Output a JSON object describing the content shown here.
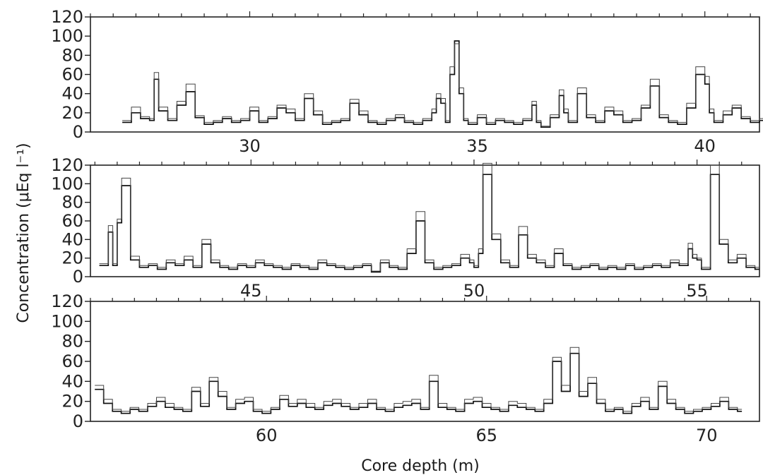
{
  "ylabel": "Concentration  (μEq  l⁻¹)",
  "xlabel": "Core depth (m)",
  "chart_data": [
    {
      "type": "line",
      "xlim": [
        26.5,
        41.2
      ],
      "ylim": [
        0,
        120
      ],
      "xticks": [
        30,
        35,
        40
      ],
      "xtick_labels": [
        "30",
        "35",
        "40"
      ],
      "yticks": [
        0,
        20,
        40,
        60,
        80,
        100,
        120
      ],
      "ytick_labels": [
        "0",
        "20",
        "40",
        "60",
        "80",
        "100",
        "120"
      ],
      "series": [
        {
          "x": [
            27.2,
            27.4,
            27.6,
            27.8,
            27.9,
            28.0,
            28.2,
            28.4,
            28.6,
            28.8,
            29.0,
            29.2,
            29.4,
            29.6,
            29.8,
            30.0,
            30.2,
            30.4,
            30.6,
            30.8,
            31.0,
            31.2,
            31.4,
            31.6,
            31.8,
            32.0,
            32.2,
            32.4,
            32.6,
            32.8,
            33.0,
            33.2,
            33.4,
            33.6,
            33.8,
            34.0,
            34.1,
            34.2,
            34.3,
            34.4,
            34.5,
            34.6,
            34.7,
            34.8,
            35.0,
            35.2,
            35.4,
            35.6,
            35.8,
            36.0,
            36.2,
            36.3,
            36.4,
            36.6,
            36.8,
            36.9,
            37.0,
            37.2,
            37.4,
            37.6,
            37.8,
            38.0,
            38.2,
            38.4,
            38.6,
            38.8,
            39.0,
            39.2,
            39.4,
            39.6,
            39.8,
            40.0,
            40.1,
            40.2,
            40.4,
            40.6,
            40.8,
            41.0,
            41.2
          ],
          "y": [
            10,
            20,
            14,
            12,
            55,
            22,
            12,
            28,
            42,
            15,
            8,
            10,
            14,
            10,
            12,
            22,
            10,
            14,
            25,
            20,
            12,
            35,
            18,
            8,
            10,
            12,
            30,
            18,
            10,
            8,
            12,
            15,
            10,
            8,
            12,
            20,
            35,
            30,
            10,
            60,
            95,
            40,
            12,
            8,
            15,
            8,
            12,
            10,
            8,
            12,
            28,
            10,
            5,
            15,
            38,
            20,
            10,
            40,
            15,
            10,
            22,
            18,
            10,
            12,
            25,
            48,
            15,
            10,
            8,
            25,
            60,
            50,
            20,
            10,
            18,
            25,
            14,
            10,
            12
          ]
        },
        {
          "x": [
            27.2,
            27.4,
            27.6,
            27.8,
            27.9,
            28.0,
            28.2,
            28.4,
            28.6,
            28.8,
            29.0,
            29.2,
            29.4,
            29.6,
            29.8,
            30.0,
            30.2,
            30.4,
            30.6,
            30.8,
            31.0,
            31.2,
            31.4,
            31.6,
            31.8,
            32.0,
            32.2,
            32.4,
            32.6,
            32.8,
            33.0,
            33.2,
            33.4,
            33.6,
            33.8,
            34.0,
            34.1,
            34.2,
            34.3,
            34.4,
            34.5,
            34.6,
            34.7,
            34.8,
            35.0,
            35.2,
            35.4,
            35.6,
            35.8,
            36.0,
            36.2,
            36.3,
            36.4,
            36.6,
            36.8,
            36.9,
            37.0,
            37.2,
            37.4,
            37.6,
            37.8,
            38.0,
            38.2,
            38.4,
            38.6,
            38.8,
            39.0,
            39.2,
            39.4,
            39.6,
            39.8,
            40.0,
            40.1,
            40.2,
            40.4,
            40.6,
            40.8,
            41.0,
            41.2
          ],
          "y": [
            12,
            26,
            16,
            14,
            62,
            26,
            14,
            32,
            50,
            17,
            10,
            12,
            16,
            12,
            14,
            26,
            12,
            16,
            28,
            24,
            14,
            40,
            22,
            10,
            12,
            14,
            34,
            22,
            12,
            10,
            14,
            18,
            12,
            10,
            14,
            24,
            40,
            35,
            12,
            68,
            92,
            46,
            14,
            10,
            18,
            10,
            14,
            12,
            10,
            14,
            32,
            12,
            6,
            18,
            44,
            24,
            12,
            46,
            18,
            12,
            26,
            22,
            12,
            14,
            28,
            55,
            18,
            12,
            10,
            30,
            68,
            58,
            24,
            12,
            22,
            28,
            16,
            12,
            14
          ]
        }
      ]
    },
    {
      "type": "line",
      "xlim": [
        41.4,
        56.4
      ],
      "ylim": [
        0,
        120
      ],
      "xticks": [
        45,
        50,
        55
      ],
      "xtick_labels": [
        "45",
        "50",
        "55"
      ],
      "yticks": [
        0,
        20,
        40,
        60,
        80,
        100,
        120
      ],
      "ytick_labels": [
        "0",
        "20",
        "40",
        "60",
        "80",
        "100",
        "120"
      ],
      "series": [
        {
          "x": [
            41.6,
            41.8,
            41.9,
            42.0,
            42.1,
            42.3,
            42.5,
            42.7,
            42.9,
            43.1,
            43.3,
            43.5,
            43.7,
            43.9,
            44.1,
            44.3,
            44.5,
            44.7,
            44.9,
            45.1,
            45.3,
            45.5,
            45.7,
            45.9,
            46.1,
            46.3,
            46.5,
            46.7,
            46.9,
            47.1,
            47.3,
            47.5,
            47.7,
            47.9,
            48.1,
            48.3,
            48.5,
            48.7,
            48.9,
            49.1,
            49.3,
            49.5,
            49.7,
            49.9,
            50.0,
            50.1,
            50.2,
            50.4,
            50.6,
            50.8,
            51.0,
            51.2,
            51.4,
            51.6,
            51.8,
            52.0,
            52.2,
            52.4,
            52.6,
            52.8,
            53.0,
            53.2,
            53.4,
            53.6,
            53.8,
            54.0,
            54.2,
            54.4,
            54.6,
            54.8,
            54.9,
            55.0,
            55.1,
            55.3,
            55.5,
            55.7,
            55.9,
            56.1,
            56.3
          ],
          "y": [
            12,
            48,
            12,
            58,
            98,
            18,
            10,
            12,
            8,
            15,
            12,
            18,
            10,
            35,
            15,
            10,
            8,
            12,
            10,
            15,
            12,
            10,
            8,
            12,
            10,
            8,
            15,
            12,
            10,
            8,
            10,
            12,
            5,
            15,
            10,
            8,
            25,
            60,
            15,
            8,
            10,
            12,
            20,
            15,
            10,
            25,
            110,
            40,
            15,
            10,
            45,
            20,
            15,
            10,
            25,
            12,
            8,
            10,
            12,
            8,
            10,
            8,
            12,
            8,
            10,
            12,
            10,
            15,
            12,
            30,
            20,
            18,
            8,
            110,
            35,
            15,
            20,
            10,
            8
          ]
        },
        {
          "x": [
            41.6,
            41.8,
            41.9,
            42.0,
            42.1,
            42.3,
            42.5,
            42.7,
            42.9,
            43.1,
            43.3,
            43.5,
            43.7,
            43.9,
            44.1,
            44.3,
            44.5,
            44.7,
            44.9,
            45.1,
            45.3,
            45.5,
            45.7,
            45.9,
            46.1,
            46.3,
            46.5,
            46.7,
            46.9,
            47.1,
            47.3,
            47.5,
            47.7,
            47.9,
            48.1,
            48.3,
            48.5,
            48.7,
            48.9,
            49.1,
            49.3,
            49.5,
            49.7,
            49.9,
            50.0,
            50.1,
            50.2,
            50.4,
            50.6,
            50.8,
            51.0,
            51.2,
            51.4,
            51.6,
            51.8,
            52.0,
            52.2,
            52.4,
            52.6,
            52.8,
            53.0,
            53.2,
            53.4,
            53.6,
            53.8,
            54.0,
            54.2,
            54.4,
            54.6,
            54.8,
            54.9,
            55.0,
            55.1,
            55.3,
            55.5,
            55.7,
            55.9,
            56.1,
            56.3
          ],
          "y": [
            14,
            55,
            14,
            62,
            106,
            22,
            12,
            14,
            10,
            18,
            14,
            22,
            12,
            40,
            18,
            12,
            10,
            14,
            12,
            18,
            14,
            12,
            10,
            14,
            12,
            10,
            18,
            14,
            12,
            10,
            12,
            14,
            6,
            18,
            12,
            10,
            30,
            70,
            18,
            10,
            12,
            14,
            24,
            18,
            12,
            30,
            122,
            46,
            18,
            12,
            54,
            24,
            18,
            12,
            30,
            14,
            10,
            12,
            14,
            10,
            12,
            10,
            14,
            10,
            12,
            14,
            12,
            18,
            14,
            36,
            24,
            20,
            10,
            120,
            40,
            18,
            24,
            12,
            10
          ]
        }
      ]
    },
    {
      "type": "line",
      "xlim": [
        56.0,
        71.2
      ],
      "ylim": [
        0,
        120
      ],
      "xticks": [
        60,
        65,
        70
      ],
      "xtick_labels": [
        "60",
        "65",
        "70"
      ],
      "yticks": [
        0,
        20,
        40,
        60,
        80,
        100,
        120
      ],
      "ytick_labels": [
        "0",
        "20",
        "40",
        "60",
        "80",
        "100",
        "120"
      ],
      "series": [
        {
          "x": [
            56.1,
            56.3,
            56.5,
            56.7,
            56.9,
            57.1,
            57.3,
            57.5,
            57.7,
            57.9,
            58.1,
            58.3,
            58.5,
            58.7,
            58.9,
            59.1,
            59.3,
            59.5,
            59.7,
            59.9,
            60.1,
            60.3,
            60.5,
            60.7,
            60.9,
            61.1,
            61.3,
            61.5,
            61.7,
            61.9,
            62.1,
            62.3,
            62.5,
            62.7,
            62.9,
            63.1,
            63.3,
            63.5,
            63.7,
            63.9,
            64.1,
            64.3,
            64.5,
            64.7,
            64.9,
            65.1,
            65.3,
            65.5,
            65.7,
            65.9,
            66.1,
            66.3,
            66.5,
            66.7,
            66.9,
            67.1,
            67.3,
            67.5,
            67.7,
            67.9,
            68.1,
            68.3,
            68.5,
            68.7,
            68.9,
            69.1,
            69.3,
            69.5,
            69.7,
            69.9,
            70.1,
            70.3,
            70.5,
            70.7
          ],
          "y": [
            32,
            18,
            10,
            8,
            12,
            10,
            15,
            20,
            14,
            12,
            10,
            30,
            15,
            40,
            25,
            12,
            18,
            20,
            10,
            8,
            12,
            22,
            15,
            18,
            14,
            12,
            16,
            18,
            15,
            12,
            14,
            18,
            12,
            10,
            14,
            16,
            18,
            12,
            40,
            14,
            12,
            10,
            18,
            20,
            14,
            12,
            10,
            16,
            14,
            12,
            10,
            18,
            60,
            30,
            68,
            25,
            38,
            18,
            10,
            12,
            8,
            15,
            20,
            12,
            35,
            18,
            12,
            8,
            10,
            12,
            15,
            20,
            12,
            10
          ]
        },
        {
          "x": [
            56.1,
            56.3,
            56.5,
            56.7,
            56.9,
            57.1,
            57.3,
            57.5,
            57.7,
            57.9,
            58.1,
            58.3,
            58.5,
            58.7,
            58.9,
            59.1,
            59.3,
            59.5,
            59.7,
            59.9,
            60.1,
            60.3,
            60.5,
            60.7,
            60.9,
            61.1,
            61.3,
            61.5,
            61.7,
            61.9,
            62.1,
            62.3,
            62.5,
            62.7,
            62.9,
            63.1,
            63.3,
            63.5,
            63.7,
            63.9,
            64.1,
            64.3,
            64.5,
            64.7,
            64.9,
            65.1,
            65.3,
            65.5,
            65.7,
            65.9,
            66.1,
            66.3,
            66.5,
            66.7,
            66.9,
            67.1,
            67.3,
            67.5,
            67.7,
            67.9,
            68.1,
            68.3,
            68.5,
            68.7,
            68.9,
            69.1,
            69.3,
            69.5,
            69.7,
            69.9,
            70.1,
            70.3,
            70.5,
            70.7
          ],
          "y": [
            36,
            22,
            12,
            10,
            14,
            12,
            18,
            24,
            18,
            14,
            12,
            34,
            18,
            44,
            30,
            14,
            22,
            24,
            12,
            10,
            14,
            26,
            18,
            22,
            18,
            14,
            20,
            22,
            18,
            14,
            18,
            22,
            14,
            12,
            18,
            20,
            22,
            14,
            46,
            18,
            14,
            12,
            22,
            24,
            18,
            14,
            12,
            20,
            18,
            14,
            12,
            22,
            64,
            36,
            74,
            30,
            44,
            22,
            12,
            14,
            10,
            18,
            24,
            14,
            40,
            22,
            14,
            10,
            12,
            14,
            18,
            24,
            14,
            12
          ]
        }
      ]
    }
  ]
}
